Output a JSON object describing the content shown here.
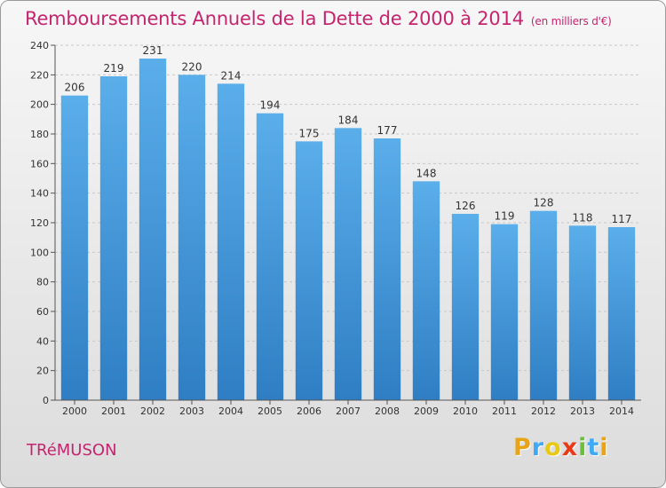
{
  "header": {
    "title": "Remboursements Annuels de la Dette de 2000 à 2014",
    "subtitle": "(en milliers d'€)"
  },
  "commune": "TRéMUSON",
  "logo": {
    "letters": [
      "P",
      "r",
      "o",
      "x",
      "i",
      "t",
      "i"
    ],
    "colors": [
      "#e8a317",
      "#3fa9f5",
      "#e8c917",
      "#e83a17",
      "#6cbf3a",
      "#3fa9f5",
      "#e8a317"
    ]
  },
  "chart_data": {
    "type": "bar",
    "categories": [
      "2000",
      "2001",
      "2002",
      "2003",
      "2004",
      "2005",
      "2006",
      "2007",
      "2008",
      "2009",
      "2010",
      "2011",
      "2012",
      "2013",
      "2014"
    ],
    "values": [
      206,
      219,
      231,
      220,
      214,
      194,
      175,
      184,
      177,
      148,
      126,
      119,
      128,
      118,
      117
    ],
    "ylim": [
      0,
      240
    ],
    "yticks": [
      0,
      20,
      40,
      60,
      80,
      100,
      120,
      140,
      160,
      180,
      200,
      220,
      240
    ],
    "grid": true,
    "bar_color": "#4d9fdf"
  }
}
